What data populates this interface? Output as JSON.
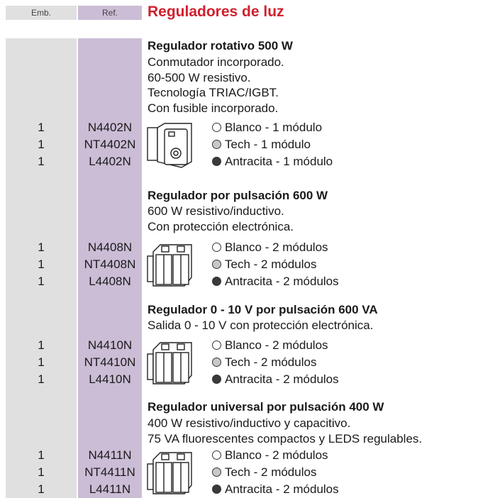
{
  "header": {
    "emb": "Emb.",
    "ref": "Ref.",
    "title": "Reguladores de luz"
  },
  "sections": [
    {
      "title": "Regulador rotativo 500 W",
      "description": [
        "Conmutador incorporado.",
        "60-500 W resistivo.",
        "Tecnología TRIAC/IGBT.",
        "Con fusible incorporado."
      ],
      "items": [
        {
          "emb": 1,
          "ref": "N4402N",
          "option": "Blanco - 1 módulo"
        },
        {
          "emb": 1,
          "ref": "NT4402N",
          "option": "Tech - 1 módulo"
        },
        {
          "emb": 1,
          "ref": "L4402N",
          "option": "Antracita - 1 módulo"
        }
      ]
    },
    {
      "title": "Regulador por pulsación 600 W",
      "description": [
        "600 W resistivo/inductivo.",
        "Con protección electrónica."
      ],
      "items": [
        {
          "emb": 1,
          "ref": "N4408N",
          "option": "Blanco - 2 módulos"
        },
        {
          "emb": 1,
          "ref": "NT4408N",
          "option": "Tech - 2 módulos"
        },
        {
          "emb": 1,
          "ref": "L4408N",
          "option": "Antracita - 2 módulos"
        }
      ]
    },
    {
      "title": "Regulador 0 - 10 V por pulsación 600 VA",
      "description": [
        "Salida 0 - 10 V con protección electrónica."
      ],
      "items": [
        {
          "emb": 1,
          "ref": "N4410N",
          "option": "Blanco - 2 módulos"
        },
        {
          "emb": 1,
          "ref": "NT4410N",
          "option": "Tech - 2 módulos"
        },
        {
          "emb": 1,
          "ref": "L4410N",
          "option": "Antracita - 2 módulos"
        }
      ]
    },
    {
      "title": "Regulador universal por pulsación 400 W",
      "description": [
        "400 W resistivo/inductivo y capacitivo.",
        "75 VA fluorescentes compactos y LEDS regulables."
      ],
      "items": [
        {
          "emb": 1,
          "ref": "N4411N",
          "option": "Blanco - 2 módulos"
        },
        {
          "emb": 1,
          "ref": "NT4411N",
          "option": "Tech - 2 módulos"
        },
        {
          "emb": 1,
          "ref": "L4411N",
          "option": "Antracita - 2 módulos"
        }
      ]
    }
  ]
}
